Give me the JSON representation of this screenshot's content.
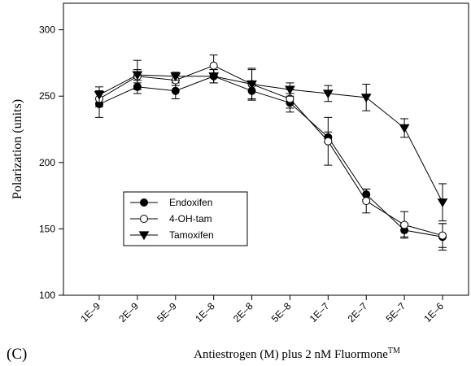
{
  "panel_label": "(C)",
  "chart_data": {
    "type": "line",
    "ylabel": "Polarization (units)",
    "xlabel_main": "Antiestrogen (M) plus 2 nM Fluormone",
    "xlabel_sup": "TM",
    "ylim": [
      100,
      320
    ],
    "yticks": [
      100,
      150,
      200,
      250,
      300
    ],
    "categories": [
      "1E–9",
      "2E–9",
      "5E–9",
      "1E–8",
      "2E–8",
      "5E–8",
      "1E–7",
      "2E–7",
      "5E–7",
      "1E–6"
    ],
    "legend_position": "lower-left",
    "series": [
      {
        "name": "Endoxifen",
        "marker": "filled-circle",
        "values": [
          244,
          257,
          254,
          265,
          254,
          245,
          219,
          176,
          149,
          144
        ],
        "errors": [
          10,
          5,
          6,
          5,
          7,
          7,
          4,
          4,
          5,
          10
        ]
      },
      {
        "name": "4-OH-tam",
        "marker": "open-circle",
        "values": [
          248,
          265,
          262,
          273,
          259,
          248,
          216,
          171,
          153,
          145
        ],
        "errors": [
          6,
          5,
          4,
          8,
          12,
          7,
          18,
          9,
          10,
          9
        ]
      },
      {
        "name": "Tamoxifen",
        "marker": "filled-triangle-down",
        "values": [
          251,
          266,
          265,
          265,
          259,
          255,
          252,
          249,
          226,
          170
        ],
        "errors": [
          6,
          11,
          3,
          5,
          11,
          5,
          6,
          10,
          7,
          14
        ]
      }
    ]
  }
}
